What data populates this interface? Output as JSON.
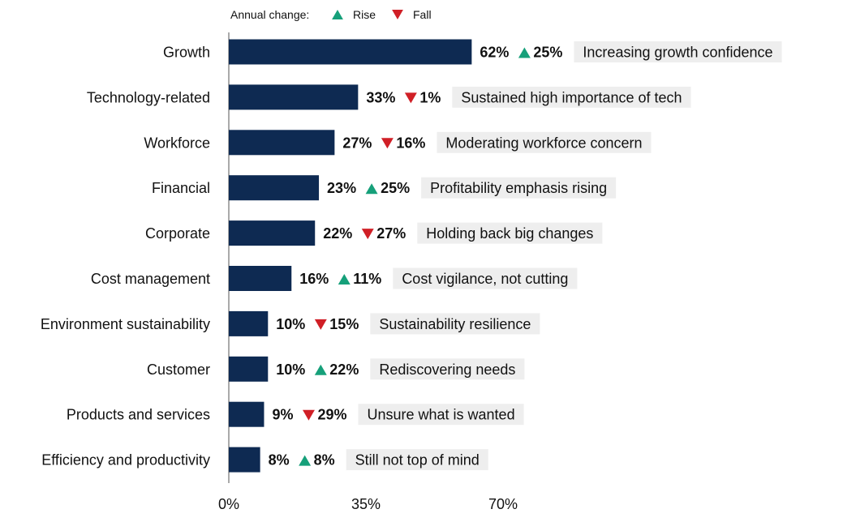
{
  "chart_data": {
    "type": "bar",
    "orientation": "horizontal",
    "legend": {
      "title": "Annual change:",
      "rise_label": "Rise",
      "fall_label": "Fall",
      "placement": "top"
    },
    "categories": [
      "Growth",
      "Technology-related",
      "Workforce",
      "Financial",
      "Corporate",
      "Cost management",
      "Environment sustainability",
      "Customer",
      "Products and services",
      "Efficiency and productivity"
    ],
    "values": [
      62,
      33,
      27,
      23,
      22,
      16,
      10,
      10,
      9,
      8
    ],
    "value_labels": [
      "62%",
      "33%",
      "27%",
      "23%",
      "22%",
      "16%",
      "10%",
      "10%",
      "9%",
      "8%"
    ],
    "changes": [
      {
        "direction": "rise",
        "label": "25%"
      },
      {
        "direction": "fall",
        "label": "1%"
      },
      {
        "direction": "fall",
        "label": "16%"
      },
      {
        "direction": "rise",
        "label": "25%"
      },
      {
        "direction": "fall",
        "label": "27%"
      },
      {
        "direction": "rise",
        "label": "11%"
      },
      {
        "direction": "fall",
        "label": "15%"
      },
      {
        "direction": "rise",
        "label": "22%"
      },
      {
        "direction": "fall",
        "label": "29%"
      },
      {
        "direction": "rise",
        "label": "8%"
      }
    ],
    "annotations": [
      "Increasing growth confidence",
      "Sustained high importance of tech",
      "Moderating workforce concern",
      "Profitability emphasis rising",
      "Holding back big changes",
      "Cost vigilance, not cutting",
      "Sustainability resilience",
      "Rediscovering needs",
      "Unsure what is wanted",
      "Still not top of mind"
    ],
    "xlim": [
      0,
      70
    ],
    "xticks": [
      0,
      35,
      70
    ],
    "xtick_labels": [
      "0%",
      "35%",
      "70%"
    ],
    "grid": false,
    "colors": {
      "bar": "#0e2a52",
      "rise": "#16a07a",
      "fall": "#d01f26",
      "annotation_bg": "#eeeeee",
      "axis": "#555555"
    }
  }
}
